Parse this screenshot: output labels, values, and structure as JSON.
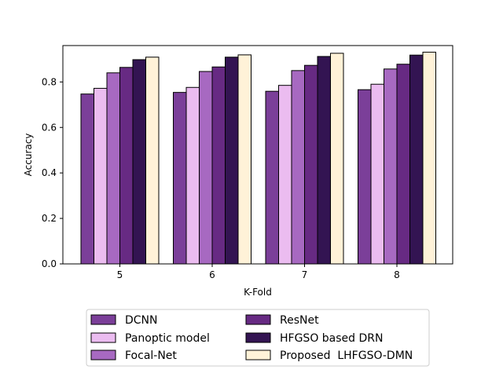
{
  "chart_data": {
    "type": "bar",
    "title": "",
    "xlabel": "K-Fold",
    "ylabel": "Accuracy",
    "categories": [
      "5",
      "6",
      "7",
      "8"
    ],
    "ylim": [
      0,
      0.96
    ],
    "yticks": [
      "0.0",
      "0.2",
      "0.4",
      "0.6",
      "0.8"
    ],
    "grid": false,
    "legend_position": "bottom-center",
    "series": [
      {
        "name": "DCNN",
        "color": "#7b3f99",
        "values": [
          0.747,
          0.754,
          0.759,
          0.766
        ]
      },
      {
        "name": "Panoptic model",
        "color": "#ebbcf0",
        "values": [
          0.772,
          0.776,
          0.785,
          0.79
        ]
      },
      {
        "name": "Focal-Net",
        "color": "#a769c1",
        "values": [
          0.84,
          0.846,
          0.85,
          0.857
        ]
      },
      {
        "name": "ResNet",
        "color": "#672a83",
        "values": [
          0.864,
          0.866,
          0.873,
          0.878
        ]
      },
      {
        "name": "HFGSO based DRN",
        "color": "#331452",
        "values": [
          0.898,
          0.909,
          0.912,
          0.918
        ]
      },
      {
        "name": "Proposed  LHFGSO-DMN",
        "color": "#fff2d8",
        "values": [
          0.909,
          0.919,
          0.926,
          0.931
        ]
      }
    ]
  }
}
